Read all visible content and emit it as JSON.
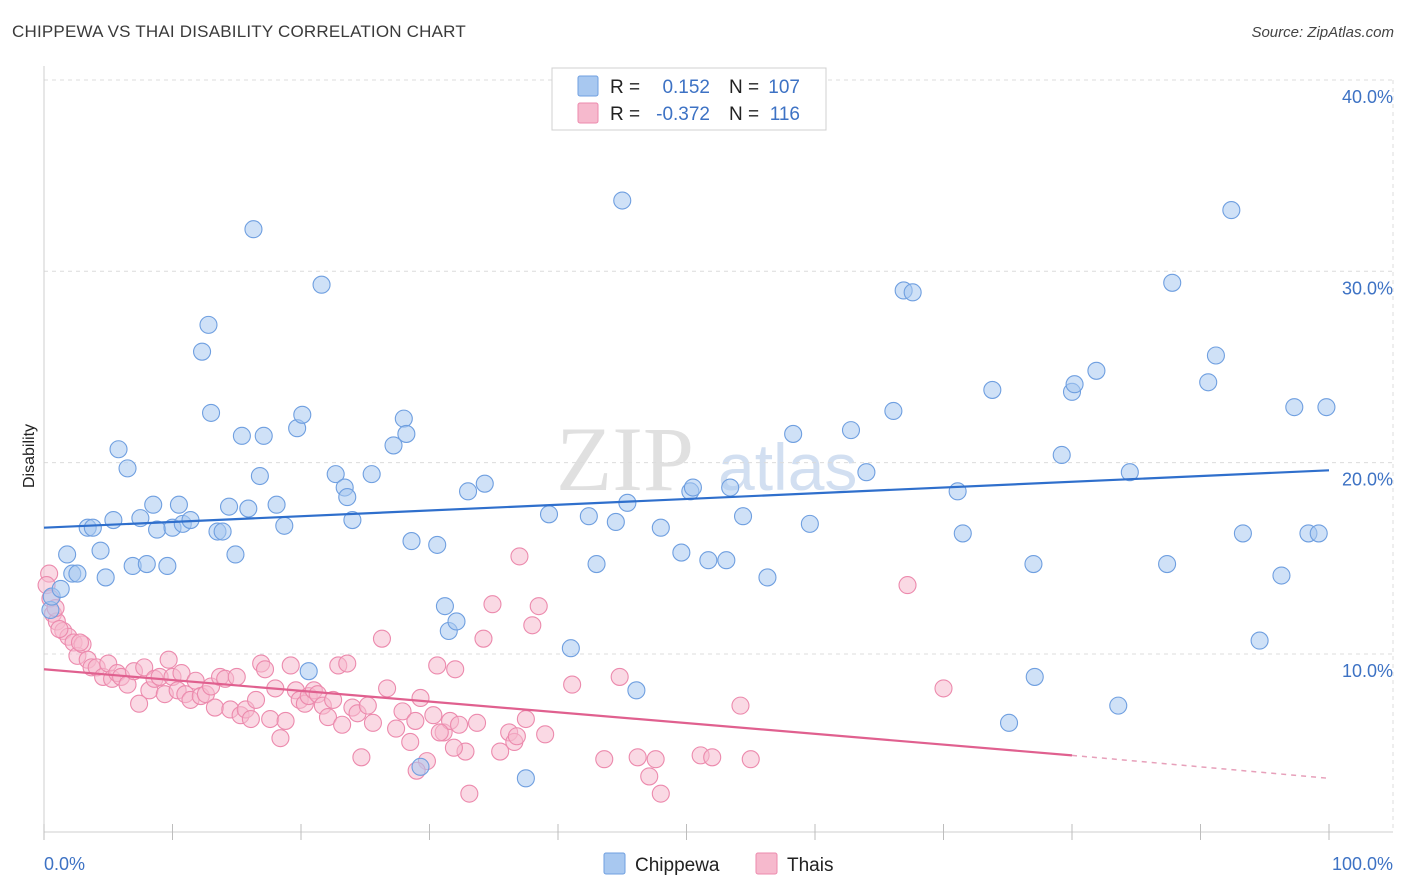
{
  "header": {
    "title": "CHIPPEWA VS THAI DISABILITY CORRELATION CHART",
    "source": "Source: ZipAtlas.com"
  },
  "watermark": {
    "zip": "ZIP",
    "atlas": "atlas"
  },
  "legend": {
    "r_label": "R =",
    "n_label": "N =",
    "rows": [
      {
        "r": "0.152",
        "n": "107",
        "color": "#a8c8f0",
        "stroke": "#6f9fe0"
      },
      {
        "r": "-0.372",
        "n": "116",
        "color": "#f6b9cd",
        "stroke": "#ec8aad"
      }
    ]
  },
  "bottom_legend": {
    "a": "Chippewa",
    "b": "Thais"
  },
  "chart_data": {
    "type": "scatter",
    "title": "CHIPPEWA VS THAI DISABILITY CORRELATION CHART",
    "xlabel": "",
    "ylabel": "Disability",
    "xlim": [
      0,
      100
    ],
    "ylim": [
      0,
      42
    ],
    "x_tick_labels": [
      "0.0%",
      "100.0%"
    ],
    "y_ticks": [
      10,
      20,
      30,
      40
    ],
    "y_tick_labels": [
      "10.0%",
      "20.0%",
      "30.0%",
      "40.0%"
    ],
    "grid": true,
    "legend_position": "top-center",
    "series": [
      {
        "name": "Chippewa",
        "color": "#6f9fe0",
        "fill": "#a8c8f0",
        "trend": {
          "x0": 0,
          "y0": 16.6,
          "x1": 100,
          "y1": 19.6
        },
        "points": [
          [
            0.5,
            12.3
          ],
          [
            0.6,
            13.0
          ],
          [
            1.3,
            13.4
          ],
          [
            1.8,
            15.2
          ],
          [
            2.2,
            14.2
          ],
          [
            2.6,
            14.2
          ],
          [
            3.4,
            16.6
          ],
          [
            3.8,
            16.6
          ],
          [
            4.4,
            15.4
          ],
          [
            4.8,
            14.0
          ],
          [
            5.4,
            17.0
          ],
          [
            5.8,
            20.7
          ],
          [
            6.5,
            19.7
          ],
          [
            6.9,
            14.6
          ],
          [
            7.5,
            17.1
          ],
          [
            8.0,
            14.7
          ],
          [
            8.5,
            17.8
          ],
          [
            8.8,
            16.5
          ],
          [
            9.6,
            14.6
          ],
          [
            10.0,
            16.6
          ],
          [
            10.5,
            17.8
          ],
          [
            10.8,
            16.8
          ],
          [
            11.4,
            17.0
          ],
          [
            12.3,
            25.8
          ],
          [
            12.8,
            27.2
          ],
          [
            13.0,
            22.6
          ],
          [
            13.5,
            16.4
          ],
          [
            13.9,
            16.4
          ],
          [
            14.4,
            17.7
          ],
          [
            14.9,
            15.2
          ],
          [
            15.4,
            21.4
          ],
          [
            15.9,
            17.6
          ],
          [
            16.3,
            32.2
          ],
          [
            16.8,
            19.3
          ],
          [
            17.1,
            21.4
          ],
          [
            18.1,
            17.8
          ],
          [
            18.7,
            16.7
          ],
          [
            19.7,
            21.8
          ],
          [
            20.1,
            22.5
          ],
          [
            20.6,
            9.1
          ],
          [
            21.6,
            29.3
          ],
          [
            22.7,
            19.4
          ],
          [
            23.4,
            18.7
          ],
          [
            23.6,
            18.2
          ],
          [
            24.0,
            17.0
          ],
          [
            25.5,
            19.4
          ],
          [
            27.2,
            20.9
          ],
          [
            28.0,
            22.3
          ],
          [
            28.2,
            21.5
          ],
          [
            28.6,
            15.9
          ],
          [
            29.3,
            4.1
          ],
          [
            30.6,
            15.7
          ],
          [
            31.2,
            12.5
          ],
          [
            31.5,
            11.2
          ],
          [
            32.1,
            11.7
          ],
          [
            33.0,
            18.5
          ],
          [
            34.3,
            18.9
          ],
          [
            37.5,
            3.5
          ],
          [
            39.3,
            17.3
          ],
          [
            41.0,
            10.3
          ],
          [
            42.4,
            17.2
          ],
          [
            43.0,
            14.7
          ],
          [
            44.5,
            16.9
          ],
          [
            45.0,
            33.7
          ],
          [
            45.4,
            17.9
          ],
          [
            46.1,
            8.1
          ],
          [
            48.0,
            16.6
          ],
          [
            49.6,
            15.3
          ],
          [
            50.3,
            18.5
          ],
          [
            50.5,
            18.7
          ],
          [
            51.7,
            14.9
          ],
          [
            53.1,
            14.9
          ],
          [
            53.4,
            18.7
          ],
          [
            54.4,
            17.2
          ],
          [
            56.3,
            14.0
          ],
          [
            58.3,
            21.5
          ],
          [
            59.6,
            16.8
          ],
          [
            62.8,
            21.7
          ],
          [
            64.0,
            19.5
          ],
          [
            66.1,
            22.7
          ],
          [
            66.9,
            29.0
          ],
          [
            67.6,
            28.9
          ],
          [
            71.1,
            18.5
          ],
          [
            71.5,
            16.3
          ],
          [
            73.8,
            23.8
          ],
          [
            75.1,
            6.4
          ],
          [
            77.0,
            14.7
          ],
          [
            77.1,
            8.8
          ],
          [
            79.2,
            20.4
          ],
          [
            80.0,
            23.7
          ],
          [
            80.2,
            24.1
          ],
          [
            81.9,
            24.8
          ],
          [
            83.6,
            7.3
          ],
          [
            84.5,
            19.5
          ],
          [
            87.4,
            14.7
          ],
          [
            87.8,
            29.4
          ],
          [
            90.6,
            24.2
          ],
          [
            91.2,
            25.6
          ],
          [
            92.4,
            33.2
          ],
          [
            93.3,
            16.3
          ],
          [
            94.6,
            10.7
          ],
          [
            96.3,
            14.1
          ],
          [
            97.3,
            22.9
          ],
          [
            98.4,
            16.3
          ],
          [
            99.2,
            16.3
          ],
          [
            99.8,
            22.9
          ]
        ]
      },
      {
        "name": "Thais",
        "color": "#ec8aad",
        "fill": "#f6b9cd",
        "trend": {
          "x0": 0,
          "y0": 9.2,
          "x1": 80,
          "y1": 4.7
        },
        "trend_dashed": {
          "x0": 80,
          "y0": 4.7,
          "x1": 100,
          "y1": 3.5
        },
        "points": [
          [
            0.4,
            14.2
          ],
          [
            0.7,
            12.1
          ],
          [
            1.0,
            11.7
          ],
          [
            1.5,
            11.2
          ],
          [
            1.9,
            10.9
          ],
          [
            2.3,
            10.6
          ],
          [
            2.6,
            9.9
          ],
          [
            3.0,
            10.5
          ],
          [
            3.4,
            9.7
          ],
          [
            3.7,
            9.3
          ],
          [
            4.1,
            9.3
          ],
          [
            4.6,
            8.8
          ],
          [
            5.0,
            9.5
          ],
          [
            5.3,
            8.7
          ],
          [
            5.7,
            9.0
          ],
          [
            6.0,
            8.8
          ],
          [
            6.5,
            8.4
          ],
          [
            7.0,
            9.1
          ],
          [
            7.4,
            7.4
          ],
          [
            7.8,
            9.3
          ],
          [
            8.2,
            8.1
          ],
          [
            8.6,
            8.7
          ],
          [
            9.0,
            8.8
          ],
          [
            9.4,
            7.9
          ],
          [
            9.7,
            9.7
          ],
          [
            10.0,
            8.8
          ],
          [
            10.4,
            8.1
          ],
          [
            10.7,
            9.0
          ],
          [
            11.0,
            7.9
          ],
          [
            11.4,
            7.6
          ],
          [
            11.8,
            8.6
          ],
          [
            12.2,
            7.8
          ],
          [
            12.6,
            7.9
          ],
          [
            13.0,
            8.3
          ],
          [
            13.3,
            7.2
          ],
          [
            13.7,
            8.8
          ],
          [
            14.1,
            8.7
          ],
          [
            14.5,
            7.1
          ],
          [
            15.0,
            8.8
          ],
          [
            15.3,
            6.8
          ],
          [
            15.7,
            7.1
          ],
          [
            16.1,
            6.6
          ],
          [
            16.5,
            7.6
          ],
          [
            16.9,
            9.5
          ],
          [
            17.2,
            9.2
          ],
          [
            17.6,
            6.6
          ],
          [
            18.0,
            8.2
          ],
          [
            18.4,
            5.6
          ],
          [
            18.8,
            6.5
          ],
          [
            19.2,
            9.4
          ],
          [
            19.6,
            8.1
          ],
          [
            19.9,
            7.6
          ],
          [
            20.3,
            7.4
          ],
          [
            20.6,
            7.8
          ],
          [
            21.0,
            8.1
          ],
          [
            21.3,
            7.9
          ],
          [
            21.7,
            7.3
          ],
          [
            22.1,
            6.7
          ],
          [
            22.5,
            7.6
          ],
          [
            22.9,
            9.4
          ],
          [
            23.2,
            6.3
          ],
          [
            23.6,
            9.5
          ],
          [
            24.0,
            7.2
          ],
          [
            24.4,
            6.9
          ],
          [
            24.7,
            4.6
          ],
          [
            25.2,
            7.3
          ],
          [
            25.6,
            6.4
          ],
          [
            26.3,
            10.8
          ],
          [
            26.7,
            8.2
          ],
          [
            27.4,
            6.1
          ],
          [
            27.9,
            7.0
          ],
          [
            28.5,
            5.4
          ],
          [
            28.9,
            6.5
          ],
          [
            29.3,
            7.7
          ],
          [
            29.8,
            4.4
          ],
          [
            30.3,
            6.8
          ],
          [
            30.6,
            9.4
          ],
          [
            31.1,
            5.9
          ],
          [
            31.6,
            6.5
          ],
          [
            32.0,
            9.2
          ],
          [
            32.3,
            6.3
          ],
          [
            32.8,
            4.9
          ],
          [
            33.1,
            2.7
          ],
          [
            33.7,
            6.4
          ],
          [
            34.2,
            10.8
          ],
          [
            34.9,
            12.6
          ],
          [
            35.5,
            4.9
          ],
          [
            36.2,
            5.9
          ],
          [
            36.6,
            5.4
          ],
          [
            37.0,
            15.1
          ],
          [
            37.5,
            6.6
          ],
          [
            38.0,
            11.5
          ],
          [
            38.5,
            12.5
          ],
          [
            39.0,
            5.8
          ],
          [
            41.1,
            8.4
          ],
          [
            43.6,
            4.5
          ],
          [
            44.8,
            8.8
          ],
          [
            46.2,
            4.6
          ],
          [
            47.1,
            3.6
          ],
          [
            47.6,
            4.5
          ],
          [
            48.0,
            2.7
          ],
          [
            51.1,
            4.7
          ],
          [
            52.0,
            4.6
          ],
          [
            54.2,
            7.3
          ],
          [
            55.0,
            4.5
          ],
          [
            67.2,
            13.6
          ],
          [
            70.0,
            8.2
          ],
          [
            0.2,
            13.6
          ],
          [
            0.5,
            12.9
          ],
          [
            0.9,
            12.4
          ],
          [
            1.2,
            11.3
          ],
          [
            2.8,
            10.6
          ],
          [
            30.8,
            5.9
          ],
          [
            36.8,
            5.7
          ],
          [
            29.0,
            3.9
          ],
          [
            31.9,
            5.1
          ]
        ]
      }
    ]
  }
}
